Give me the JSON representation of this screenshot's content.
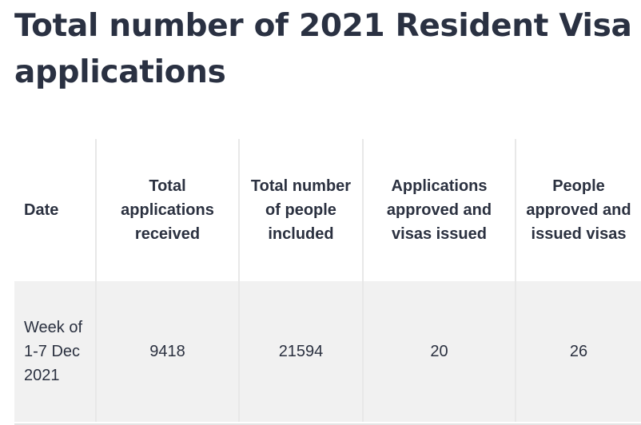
{
  "page": {
    "title_lines": [
      "Total number of 2021 Resident Visa",
      "applications"
    ]
  },
  "table": {
    "headers": [
      "Date",
      "Total applications received",
      "Total number of people included",
      "Applications approved and visas issued",
      "People approved and issued visas"
    ],
    "rows": [
      [
        "Week of 1-7 Dec 2021",
        "9418",
        "21594",
        "20",
        "26"
      ]
    ]
  }
}
